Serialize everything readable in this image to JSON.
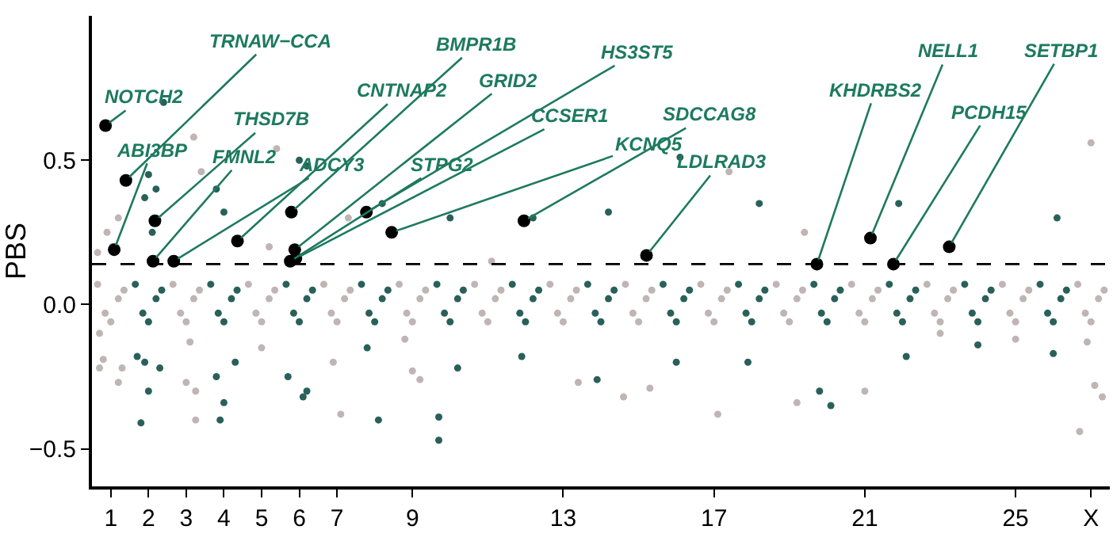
{
  "chart_data": {
    "type": "scatter",
    "ylabel": "PBS",
    "marker": "circle",
    "xlim": [
      0.5,
      27.5
    ],
    "xticks": [
      1,
      2,
      3,
      4,
      5,
      6,
      7,
      9,
      13,
      17,
      21,
      25,
      {
        "value": 27,
        "label": "X"
      }
    ],
    "ylim": [
      -0.63,
      1.0
    ],
    "yticks": [
      {
        "value": -0.5,
        "label": "−0.5"
      },
      {
        "value": 0,
        "label": "0.0"
      },
      {
        "value": 0.5,
        "label": "0.5"
      }
    ],
    "ref_lines": [
      {
        "axis": "y",
        "value": 0.14,
        "line_style": "dashed",
        "color": "#000000"
      }
    ],
    "series": [
      {
        "color": "#bfb5b3",
        "x": [
          0.65,
          0.85,
          1,
          1.2,
          1.35,
          2.65,
          2.85,
          3,
          3.2,
          3.35,
          4.65,
          4.85,
          5,
          5.2,
          5.35,
          6.65,
          6.85,
          7,
          7.2,
          7.35,
          8.65,
          8.85,
          9,
          9.2,
          9.35,
          10.65,
          10.85,
          11,
          11.2,
          11.35,
          12.65,
          12.85,
          13,
          13.2,
          13.35,
          14.65,
          14.85,
          15,
          15.2,
          15.35,
          16.65,
          16.85,
          17,
          17.2,
          17.35,
          18.65,
          18.85,
          19,
          19.2,
          19.35,
          20.65,
          20.85,
          21,
          21.2,
          21.35,
          22.65,
          22.85,
          23,
          23.2,
          23.35,
          24.65,
          24.85,
          25,
          25.2,
          25.35,
          26.65,
          26.85,
          27,
          27.2,
          27.35,
          0.7,
          0.7,
          0.8,
          1.2,
          1.3,
          0.9,
          1.2,
          1.05,
          0.65,
          3.1,
          3,
          3.25,
          3.25,
          3.2,
          3.4,
          5,
          5.2,
          5.4,
          7.1,
          6.9,
          7.3,
          8.8,
          9,
          9.2,
          11.1,
          13.4,
          14.6,
          15.3,
          17.1,
          17.4,
          19.2,
          19.4,
          21,
          23,
          25,
          26.7,
          27.1,
          27.3,
          27,
          26.9
        ],
        "values": [
          0.07,
          -0.03,
          -0.06,
          0.02,
          0.05,
          0.07,
          -0.03,
          -0.06,
          0.02,
          0.05,
          0.07,
          -0.03,
          -0.06,
          0.02,
          0.05,
          0.07,
          -0.03,
          -0.06,
          0.02,
          0.05,
          0.07,
          -0.03,
          -0.06,
          0.02,
          0.05,
          0.07,
          -0.03,
          -0.06,
          0.02,
          0.05,
          0.07,
          -0.03,
          -0.06,
          0.02,
          0.05,
          0.07,
          -0.03,
          -0.06,
          0.02,
          0.05,
          0.07,
          -0.03,
          -0.06,
          0.02,
          0.05,
          0.07,
          -0.03,
          -0.06,
          0.02,
          0.05,
          0.07,
          -0.03,
          -0.06,
          0.02,
          0.05,
          0.07,
          -0.03,
          -0.06,
          0.02,
          0.05,
          0.07,
          -0.03,
          -0.06,
          0.02,
          0.05,
          0.07,
          -0.03,
          -0.06,
          0.02,
          0.05,
          -0.1,
          -0.22,
          -0.19,
          -0.27,
          -0.22,
          0.25,
          0.3,
          0.2,
          0.18,
          -0.13,
          -0.27,
          -0.4,
          -0.3,
          0.58,
          0.46,
          -0.15,
          0.2,
          0.54,
          -0.38,
          -0.2,
          0.3,
          -0.12,
          -0.23,
          -0.26,
          0.15,
          -0.27,
          -0.32,
          -0.29,
          -0.38,
          0.46,
          -0.34,
          0.25,
          -0.3,
          -0.1,
          -0.12,
          -0.44,
          -0.28,
          -0.32,
          0.56,
          -0.13
        ]
      },
      {
        "color": "#2a605a",
        "x": [
          1.65,
          1.85,
          2,
          2.2,
          2.35,
          3.65,
          3.85,
          4,
          4.2,
          4.35,
          5.65,
          5.85,
          6,
          6.2,
          6.35,
          7.65,
          7.85,
          8,
          8.2,
          8.35,
          9.65,
          9.85,
          10,
          10.2,
          10.35,
          11.65,
          11.85,
          12,
          12.2,
          12.35,
          13.65,
          13.85,
          14,
          14.2,
          14.35,
          15.65,
          15.85,
          16,
          16.2,
          16.35,
          17.65,
          17.85,
          18,
          18.2,
          18.35,
          19.65,
          19.85,
          20,
          20.2,
          20.35,
          21.65,
          21.85,
          22,
          22.2,
          22.35,
          23.65,
          23.85,
          24,
          24.2,
          24.35,
          25.65,
          25.85,
          26,
          26.2,
          26.35,
          1.7,
          1.9,
          2,
          1.8,
          2.3,
          2,
          1.9,
          2.4,
          2.2,
          2.1,
          3.8,
          4,
          3.9,
          4.3,
          3.8,
          4,
          5.7,
          6.1,
          6.2,
          6,
          6.2,
          8.1,
          7.8,
          8.2,
          9.7,
          9.7,
          10.2,
          10,
          11.9,
          12.2,
          13.9,
          14.2,
          16,
          16.1,
          17.9,
          18.2,
          20.1,
          19.8,
          22.1,
          21.9,
          24,
          26,
          26.1
        ],
        "values": [
          0.07,
          -0.03,
          -0.06,
          0.02,
          0.05,
          0.07,
          -0.03,
          -0.06,
          0.02,
          0.05,
          0.07,
          -0.03,
          -0.06,
          0.02,
          0.05,
          0.07,
          -0.03,
          -0.06,
          0.02,
          0.05,
          0.07,
          -0.03,
          -0.06,
          0.02,
          0.05,
          0.07,
          -0.03,
          -0.06,
          0.02,
          0.05,
          0.07,
          -0.03,
          -0.06,
          0.02,
          0.05,
          0.07,
          -0.03,
          -0.06,
          0.02,
          0.05,
          0.07,
          -0.03,
          -0.06,
          0.02,
          0.05,
          0.07,
          -0.03,
          -0.06,
          0.02,
          0.05,
          0.07,
          -0.03,
          -0.06,
          0.02,
          0.05,
          0.07,
          -0.03,
          -0.06,
          0.02,
          0.05,
          0.07,
          -0.03,
          -0.06,
          0.02,
          0.05,
          -0.18,
          -0.2,
          -0.3,
          -0.41,
          -0.22,
          0.45,
          0.37,
          0.7,
          0.4,
          0.25,
          -0.25,
          -0.34,
          -0.4,
          -0.2,
          0.4,
          0.32,
          -0.25,
          -0.32,
          -0.3,
          0.5,
          0.48,
          -0.4,
          -0.15,
          0.35,
          -0.39,
          -0.47,
          -0.22,
          0.3,
          -0.18,
          0.3,
          -0.26,
          0.32,
          -0.2,
          0.51,
          -0.2,
          0.35,
          -0.35,
          -0.3,
          -0.18,
          0.35,
          -0.14,
          -0.17,
          0.3
        ]
      },
      {
        "color": "#000000",
        "x": [
          0.86,
          1.09,
          1.4,
          2.12,
          2.17,
          2.67,
          4.36,
          5.76,
          5.79,
          5.88,
          5.91,
          7.78,
          8.45,
          11.96,
          15.21,
          19.73,
          21.15,
          21.76,
          23.24
        ],
        "values": [
          0.62,
          0.19,
          0.43,
          0.15,
          0.29,
          0.15,
          0.22,
          0.15,
          0.32,
          0.19,
          0.16,
          0.32,
          0.25,
          0.29,
          0.17,
          0.14,
          0.23,
          0.14,
          0.2
        ]
      }
    ],
    "annotations": [
      {
        "text": "NOTCH2",
        "x": 0.86,
        "y": 0.62
      },
      {
        "text": "ABI3BP",
        "x": 1.09,
        "y": 0.19
      },
      {
        "text": "TRNAW−CCA",
        "x": 1.4,
        "y": 0.43
      },
      {
        "text": "FMNL2",
        "x": 2.12,
        "y": 0.15
      },
      {
        "text": "THSD7B",
        "x": 2.17,
        "y": 0.29
      },
      {
        "text": "ADCY3",
        "x": 2.67,
        "y": 0.15
      },
      {
        "text": "CNTNAP2",
        "x": 4.36,
        "y": 0.22
      },
      {
        "text": "STPG2",
        "x": 5.76,
        "y": 0.15
      },
      {
        "text": "BMPR1B",
        "x": 5.79,
        "y": 0.32
      },
      {
        "text": "GRID2",
        "x": 5.88,
        "y": 0.19
      },
      {
        "text": "CCSER1",
        "x": 5.91,
        "y": 0.16
      },
      {
        "text": "HS3ST5",
        "x": 7.78,
        "y": 0.32
      },
      {
        "text": "KCNQ5",
        "x": 8.45,
        "y": 0.25
      },
      {
        "text": "SDCCAG8",
        "x": 11.96,
        "y": 0.29
      },
      {
        "text": "LDLRAD3",
        "x": 15.21,
        "y": 0.17
      },
      {
        "text": "KHDRBS2",
        "x": 19.73,
        "y": 0.14
      },
      {
        "text": "NELL1",
        "x": 21.15,
        "y": 0.23
      },
      {
        "text": "PCDH15",
        "x": 21.76,
        "y": 0.14
      },
      {
        "text": "SETBP1",
        "x": 23.24,
        "y": 0.2
      }
    ]
  }
}
